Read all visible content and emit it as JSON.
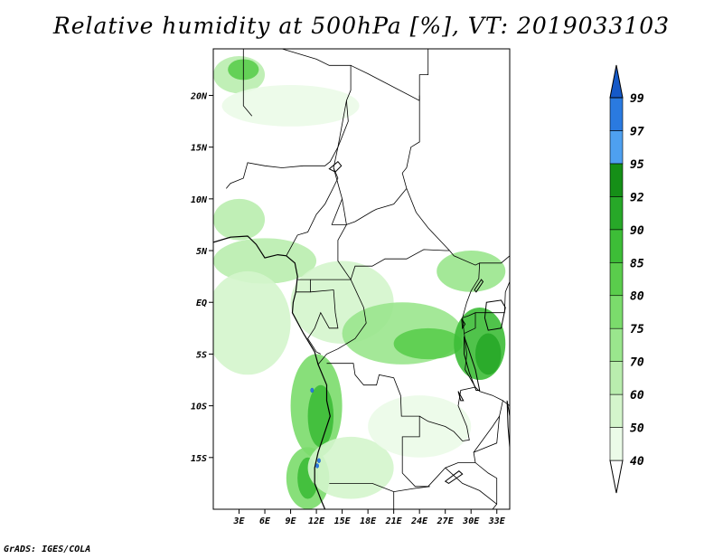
{
  "title": "Relative humidity at 500hPa [%], VT: 2019033103",
  "credit": "GrADS: IGES/COLA",
  "map": {
    "lon_range": [
      0,
      34.5
    ],
    "lat_range": [
      -20,
      24.5
    ],
    "lat_ticks": [
      {
        "value": 20,
        "label": "20N"
      },
      {
        "value": 15,
        "label": "15N"
      },
      {
        "value": 10,
        "label": "10N"
      },
      {
        "value": 5,
        "label": "5N"
      },
      {
        "value": 0,
        "label": "EQ"
      },
      {
        "value": -5,
        "label": "5S"
      },
      {
        "value": -10,
        "label": "10S"
      },
      {
        "value": -15,
        "label": "15S"
      }
    ],
    "lon_ticks": [
      {
        "value": 3,
        "label": "3E"
      },
      {
        "value": 6,
        "label": "6E"
      },
      {
        "value": 9,
        "label": "9E"
      },
      {
        "value": 12,
        "label": "12E"
      },
      {
        "value": 15,
        "label": "15E"
      },
      {
        "value": 18,
        "label": "18E"
      },
      {
        "value": 21,
        "label": "21E"
      },
      {
        "value": 24,
        "label": "24E"
      },
      {
        "value": 27,
        "label": "27E"
      },
      {
        "value": 30,
        "label": "30E"
      },
      {
        "value": 33,
        "label": "33E"
      }
    ]
  },
  "colorbar": {
    "levels": [
      {
        "label": "40",
        "color": "#ebfbe8"
      },
      {
        "label": "50",
        "color": "#d4f5cc"
      },
      {
        "label": "60",
        "color": "#b9edae"
      },
      {
        "label": "70",
        "color": "#9ae68d"
      },
      {
        "label": "75",
        "color": "#7bdc6c"
      },
      {
        "label": "80",
        "color": "#5acd4c"
      },
      {
        "label": "85",
        "color": "#3dbd37"
      },
      {
        "label": "90",
        "color": "#27a828"
      },
      {
        "label": "92",
        "color": "#158f17"
      },
      {
        "label": "95",
        "color": "#4ea0f0"
      },
      {
        "label": "97",
        "color": "#2a7ae0"
      },
      {
        "label": "99",
        "color": "#1559c8"
      }
    ],
    "top_color": "#1559c8",
    "bottom_color": "#ffffff"
  },
  "humidity_patches": [
    {
      "name": "sahara-north",
      "color": "#b9edae",
      "lon": 3,
      "lat": 22,
      "rx": 3,
      "ry": 1.8
    },
    {
      "name": "sahara-north-core",
      "color": "#5acd4c",
      "lon": 3.5,
      "lat": 22.5,
      "rx": 1.8,
      "ry": 1
    },
    {
      "name": "sahara-band",
      "color": "#ebfbe8",
      "lon": 9,
      "lat": 19,
      "rx": 8,
      "ry": 2
    },
    {
      "name": "west-africa-coast",
      "color": "#b9edae",
      "lon": 3,
      "lat": 8,
      "rx": 3,
      "ry": 2
    },
    {
      "name": "gulf-band",
      "color": "#b9edae",
      "lon": 6,
      "lat": 4,
      "rx": 6,
      "ry": 2.2
    },
    {
      "name": "gulf-band-2",
      "color": "#d4f5cc",
      "lon": 4,
      "lat": -2,
      "rx": 5,
      "ry": 5
    },
    {
      "name": "congo-north",
      "color": "#d4f5cc",
      "lon": 15,
      "lat": 0,
      "rx": 6,
      "ry": 4
    },
    {
      "name": "congo-basin",
      "color": "#9ae68d",
      "lon": 22,
      "lat": -3,
      "rx": 7,
      "ry": 3
    },
    {
      "name": "congo-basin-core",
      "color": "#5acd4c",
      "lon": 25,
      "lat": -4,
      "rx": 4,
      "ry": 1.5
    },
    {
      "name": "great-lakes",
      "color": "#3dbd37",
      "lon": 31,
      "lat": -4,
      "rx": 3,
      "ry": 3.5
    },
    {
      "name": "great-lakes-core",
      "color": "#27a828",
      "lon": 32,
      "lat": -5,
      "rx": 1.5,
      "ry": 2
    },
    {
      "name": "east-africa",
      "color": "#9ae68d",
      "lon": 30,
      "lat": 3,
      "rx": 4,
      "ry": 2
    },
    {
      "name": "angola-coast",
      "color": "#7bdc6c",
      "lon": 12,
      "lat": -10,
      "rx": 3,
      "ry": 5
    },
    {
      "name": "angola-coast-core",
      "color": "#3dbd37",
      "lon": 12.5,
      "lat": -11,
      "rx": 1.5,
      "ry": 3
    },
    {
      "name": "namibia-coast",
      "color": "#7bdc6c",
      "lon": 11,
      "lat": -17,
      "rx": 2.5,
      "ry": 3
    },
    {
      "name": "namibia-coast-core",
      "color": "#3dbd37",
      "lon": 11,
      "lat": -17,
      "rx": 1.2,
      "ry": 2
    },
    {
      "name": "south-central",
      "color": "#d4f5cc",
      "lon": 16,
      "lat": -16,
      "rx": 5,
      "ry": 3
    },
    {
      "name": "zambia",
      "color": "#ebfbe8",
      "lon": 24,
      "lat": -12,
      "rx": 6,
      "ry": 3
    }
  ],
  "coastline": [
    [
      0,
      5.8
    ],
    [
      2,
      6.3
    ],
    [
      4,
      6.4
    ],
    [
      5,
      5.6
    ],
    [
      6,
      4.3
    ],
    [
      7.5,
      4.6
    ],
    [
      8.5,
      4.5
    ],
    [
      9.5,
      3.8
    ],
    [
      9.8,
      2.5
    ],
    [
      9.6,
      1
    ],
    [
      9.3,
      0
    ],
    [
      9.2,
      -1
    ],
    [
      10.5,
      -3
    ],
    [
      11.8,
      -4.8
    ],
    [
      12.2,
      -6
    ],
    [
      13.2,
      -8
    ],
    [
      13.2,
      -9.5
    ],
    [
      13.6,
      -11
    ],
    [
      12.8,
      -13
    ],
    [
      12.2,
      -14.5
    ],
    [
      11.8,
      -16
    ],
    [
      11.8,
      -17.5
    ],
    [
      12.5,
      -19
    ],
    [
      13,
      -20
    ]
  ],
  "borders": [
    [
      [
        3.5,
        24.5
      ],
      [
        3.5,
        19
      ],
      [
        4.5,
        18
      ]
    ],
    [
      [
        8,
        24.5
      ],
      [
        12,
        23.5
      ],
      [
        13.5,
        22.9
      ],
      [
        16,
        22.9
      ],
      [
        16,
        20.5
      ],
      [
        15.5,
        19.5
      ],
      [
        15.7,
        17.5
      ],
      [
        14.5,
        15
      ],
      [
        13.6,
        13.6
      ],
      [
        13,
        13.2
      ],
      [
        10.5,
        13.2
      ],
      [
        8,
        13
      ],
      [
        6,
        13.2
      ],
      [
        4,
        13.5
      ],
      [
        3.5,
        12
      ],
      [
        2,
        11.5
      ],
      [
        1.5,
        11
      ]
    ],
    [
      [
        16,
        22.9
      ],
      [
        18,
        22.1
      ],
      [
        24,
        19.5
      ],
      [
        24,
        20
      ],
      [
        24,
        15.5
      ],
      [
        23,
        15
      ],
      [
        22.5,
        13
      ],
      [
        22,
        12.5
      ],
      [
        22.5,
        11
      ],
      [
        23.6,
        8.7
      ],
      [
        25,
        7.2
      ],
      [
        27.5,
        5
      ],
      [
        28,
        4.5
      ],
      [
        30.5,
        3.6
      ],
      [
        31,
        3.8
      ],
      [
        33.5,
        3.8
      ],
      [
        34.5,
        4.5
      ]
    ],
    [
      [
        24,
        19.5
      ],
      [
        24,
        22
      ],
      [
        25,
        22
      ],
      [
        25,
        24.5
      ]
    ],
    [
      [
        15.5,
        19.5
      ],
      [
        14.5,
        15
      ],
      [
        14,
        13
      ],
      [
        15,
        10
      ],
      [
        13.8,
        7.5
      ],
      [
        15.5,
        7.5
      ],
      [
        16.5,
        7.8
      ],
      [
        18.5,
        8.8
      ],
      [
        19,
        9
      ],
      [
        21,
        9.5
      ],
      [
        22.5,
        11
      ]
    ],
    [
      [
        8.5,
        4.5
      ],
      [
        9.8,
        6.5
      ],
      [
        11,
        6.8
      ],
      [
        12,
        8.5
      ],
      [
        13,
        9.5
      ],
      [
        13.8,
        10.8
      ],
      [
        14.5,
        12
      ],
      [
        14,
        13
      ]
    ],
    [
      [
        15,
        10
      ],
      [
        15.5,
        7.5
      ],
      [
        14.5,
        6
      ],
      [
        14.5,
        4
      ],
      [
        16,
        2.2
      ],
      [
        16.5,
        3.5
      ],
      [
        18.5,
        3.5
      ],
      [
        20,
        4.2
      ],
      [
        22.5,
        4.2
      ],
      [
        24.5,
        5.1
      ],
      [
        27,
        5
      ],
      [
        27.5,
        5
      ]
    ],
    [
      [
        9.8,
        2.2
      ],
      [
        11.3,
        2.2
      ],
      [
        11.3,
        1
      ],
      [
        9.6,
        1
      ]
    ],
    [
      [
        11.3,
        2.2
      ],
      [
        13,
        2.2
      ],
      [
        14,
        2.2
      ],
      [
        16,
        2.2
      ]
    ],
    [
      [
        11.3,
        1
      ],
      [
        14,
        1.2
      ],
      [
        14.2,
        -1
      ],
      [
        14.5,
        -2.5
      ],
      [
        13.5,
        -2.5
      ],
      [
        12.5,
        -1
      ],
      [
        11.8,
        -2.5
      ],
      [
        11,
        -3.5
      ],
      [
        12,
        -4.8
      ],
      [
        12.5,
        -5
      ]
    ],
    [
      [
        16,
        2.2
      ],
      [
        17.5,
        -0.5
      ],
      [
        17.8,
        -2
      ],
      [
        16.5,
        -3.5
      ],
      [
        15.5,
        -4
      ],
      [
        14.5,
        -4.5
      ],
      [
        13.2,
        -5
      ],
      [
        12.2,
        -6
      ]
    ],
    [
      [
        13.2,
        -5.9
      ],
      [
        16.3,
        -5.9
      ],
      [
        16.5,
        -7
      ],
      [
        17.5,
        -8
      ],
      [
        19,
        -8
      ],
      [
        19.3,
        -7
      ],
      [
        21,
        -7.3
      ],
      [
        21.8,
        -9
      ],
      [
        21.9,
        -11
      ],
      [
        24,
        -11
      ],
      [
        24,
        -13
      ],
      [
        22,
        -13
      ],
      [
        22,
        -16.5
      ],
      [
        23.5,
        -17.8
      ],
      [
        25,
        -17.8
      ]
    ],
    [
      [
        13.5,
        -17.5
      ],
      [
        18.5,
        -17.5
      ],
      [
        21,
        -18.3
      ],
      [
        23.3,
        -18
      ],
      [
        25.2,
        -17.8
      ]
    ],
    [
      [
        21,
        -18.3
      ],
      [
        21,
        -20
      ]
    ],
    [
      [
        25,
        -17.8
      ],
      [
        27,
        -16
      ],
      [
        28.5,
        -15.5
      ],
      [
        30.5,
        -15.5
      ],
      [
        30.3,
        -14.5
      ],
      [
        33,
        -13.6
      ],
      [
        33.3,
        -11
      ],
      [
        33.7,
        -9.5
      ],
      [
        32.5,
        -9
      ],
      [
        31,
        -8.6
      ],
      [
        30.5,
        -8.2
      ],
      [
        29.3,
        -6.5
      ],
      [
        29.5,
        -5
      ],
      [
        29.2,
        -3
      ],
      [
        29,
        -1.5
      ],
      [
        29.7,
        -1.3
      ],
      [
        30.5,
        -1
      ],
      [
        31.5,
        -1
      ],
      [
        33.9,
        -1
      ],
      [
        34,
        1
      ],
      [
        34.5,
        2
      ]
    ],
    [
      [
        29,
        -1.5
      ],
      [
        29.5,
        0
      ],
      [
        30,
        1.1
      ],
      [
        30.9,
        2.3
      ],
      [
        31,
        3.8
      ]
    ],
    [
      [
        30.5,
        -1
      ],
      [
        30.5,
        -2.5
      ],
      [
        29.2,
        -3
      ]
    ],
    [
      [
        24,
        -11
      ],
      [
        25,
        -11.5
      ],
      [
        27,
        -12
      ],
      [
        28,
        -12.5
      ],
      [
        29,
        -13.4
      ],
      [
        29.8,
        -13.3
      ],
      [
        29.5,
        -12
      ],
      [
        28.5,
        -10
      ],
      [
        28.8,
        -8.5
      ],
      [
        30.5,
        -8.2
      ]
    ],
    [
      [
        30.3,
        -14.5
      ],
      [
        32.5,
        -12
      ],
      [
        33.3,
        -11
      ]
    ],
    [
      [
        33.7,
        -9.5
      ],
      [
        34.5,
        -10
      ]
    ],
    [
      [
        30.5,
        -15.5
      ],
      [
        32,
        -16.5
      ],
      [
        33,
        -17
      ],
      [
        33,
        -19.5
      ],
      [
        32.5,
        -20
      ]
    ],
    [
      [
        27,
        -16
      ],
      [
        29,
        -17.5
      ],
      [
        31,
        -18.2
      ],
      [
        33,
        -19.5
      ]
    ]
  ],
  "lakes": [
    {
      "name": "lake-victoria",
      "points": [
        [
          31.8,
          0
        ],
        [
          33.5,
          0.2
        ],
        [
          34,
          -0.5
        ],
        [
          33.5,
          -2.5
        ],
        [
          32,
          -2.7
        ],
        [
          31.6,
          -1.5
        ]
      ]
    },
    {
      "name": "lake-tanganyika",
      "points": [
        [
          29.2,
          -3.3
        ],
        [
          29.7,
          -4.5
        ],
        [
          30.5,
          -6.5
        ],
        [
          31,
          -8.5
        ],
        [
          30.6,
          -8.5
        ],
        [
          29.8,
          -6.8
        ],
        [
          29.2,
          -5
        ]
      ]
    },
    {
      "name": "lake-kivu",
      "points": [
        [
          28.9,
          -1.6
        ],
        [
          29.3,
          -2.1
        ],
        [
          29,
          -2.5
        ]
      ]
    },
    {
      "name": "lake-mweru",
      "points": [
        [
          28.5,
          -8.6
        ],
        [
          29.1,
          -9.5
        ],
        [
          28.8,
          -9.5
        ]
      ]
    },
    {
      "name": "lake-kariba",
      "points": [
        [
          27,
          -17.3
        ],
        [
          28.6,
          -16.3
        ],
        [
          29,
          -16.6
        ],
        [
          27.4,
          -17.5
        ]
      ]
    },
    {
      "name": "lake-malawi",
      "points": [
        [
          34.2,
          -9.5
        ],
        [
          34.5,
          -11
        ],
        [
          34.5,
          -14
        ],
        [
          34.3,
          -12
        ]
      ]
    },
    {
      "name": "lake-chad",
      "points": [
        [
          13.5,
          12.9
        ],
        [
          14.5,
          13.6
        ],
        [
          14.9,
          13.2
        ],
        [
          14.2,
          12.6
        ]
      ]
    },
    {
      "name": "lake-albert",
      "points": [
        [
          30.6,
          1.0
        ],
        [
          31.4,
          2.0
        ],
        [
          31.2,
          2.2
        ],
        [
          30.4,
          1.2
        ]
      ]
    }
  ],
  "small_lakes": [
    {
      "lon": 11.5,
      "lat": -8.5
    },
    {
      "lon": 12.3,
      "lat": -15.3
    },
    {
      "lon": 12.1,
      "lat": -15.8
    }
  ]
}
